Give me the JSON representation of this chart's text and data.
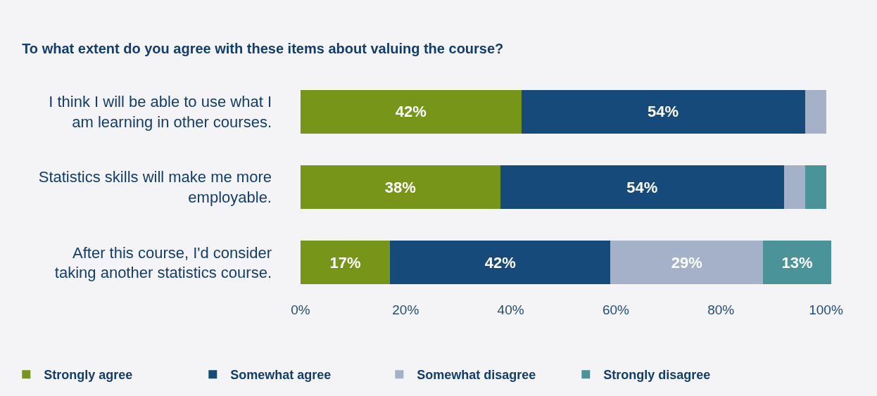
{
  "chart_data": {
    "type": "bar",
    "orientation": "horizontal",
    "stacked": true,
    "title": "To what extent do you agree with these items about valuing the course?",
    "categories": [
      "I think I will be able to use what I am learning in other courses.",
      "Statistics skills will make me more employable.",
      "After this course, I'd consider taking another statistics course."
    ],
    "series": [
      {
        "name": "Strongly agree",
        "color": "#769519",
        "values": [
          42,
          38,
          17
        ],
        "value_labels": [
          "42%",
          "38%",
          "17%"
        ]
      },
      {
        "name": "Somewhat agree",
        "color": "#154a7a",
        "values": [
          54,
          54,
          42
        ],
        "value_labels": [
          "54%",
          "54%",
          "42%"
        ]
      },
      {
        "name": "Somewhat disagree",
        "color": "#a5b0c9",
        "values": [
          4,
          4,
          29
        ],
        "value_labels": [
          null,
          null,
          "29%"
        ]
      },
      {
        "name": "Strongly disagree",
        "color": "#4a9499",
        "values": [
          0,
          4,
          13
        ],
        "value_labels": [
          null,
          null,
          "13%"
        ]
      }
    ],
    "xlim": [
      0,
      101
    ],
    "xticks": [
      {
        "value": 0,
        "label": "0%"
      },
      {
        "value": 20,
        "label": "20%"
      },
      {
        "value": 40,
        "label": "40%"
      },
      {
        "value": 60,
        "label": "60%"
      },
      {
        "value": 80,
        "label": "80%"
      },
      {
        "value": 100,
        "label": "100%"
      }
    ],
    "grid": false,
    "legend": "bottom"
  }
}
